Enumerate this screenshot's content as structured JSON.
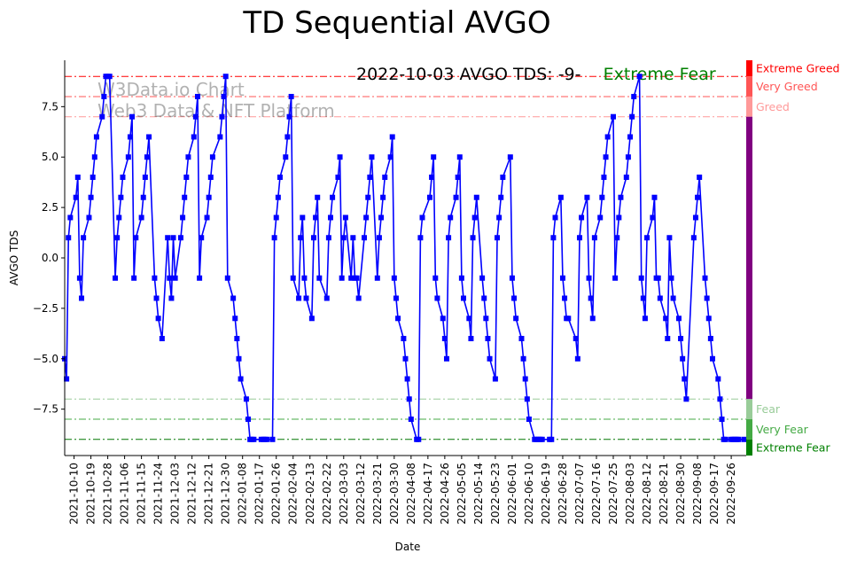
{
  "chart_data": {
    "type": "line",
    "title": "TD Sequential AVGO",
    "xlabel": "Date",
    "ylabel": "AVGO TDS",
    "ylim": [
      -9.8,
      9.8
    ],
    "xlim": [
      "2021-10-05",
      "2022-10-04"
    ],
    "y_ticks": [
      -7.5,
      -5.0,
      -2.5,
      0.0,
      2.5,
      5.0,
      7.5
    ],
    "y_tick_labels": [
      "−7.5",
      "−5.0",
      "−2.5",
      "0.0",
      "2.5",
      "5.0",
      "7.5"
    ],
    "x_tick_labels": [
      "2021-10-10",
      "2021-10-19",
      "2021-10-28",
      "2021-11-06",
      "2021-11-15",
      "2021-11-24",
      "2021-12-03",
      "2021-12-12",
      "2021-12-21",
      "2021-12-30",
      "2022-01-08",
      "2022-01-17",
      "2022-01-26",
      "2022-02-04",
      "2022-02-13",
      "2022-02-22",
      "2022-03-03",
      "2022-03-12",
      "2022-03-21",
      "2022-03-30",
      "2022-04-08",
      "2022-04-17",
      "2022-04-26",
      "2022-05-05",
      "2022-05-14",
      "2022-05-23",
      "2022-06-01",
      "2022-06-10",
      "2022-06-19",
      "2022-06-28",
      "2022-07-07",
      "2022-07-16",
      "2022-07-25",
      "2022-08-03",
      "2022-08-12",
      "2022-08-21",
      "2022-08-30",
      "2022-09-08",
      "2022-09-17",
      "2022-09-26"
    ],
    "grid": false,
    "series": [
      {
        "color": "#0000ff",
        "marker": "square",
        "points": [
          [
            "2021-10-05",
            -5
          ],
          [
            "2021-10-06",
            -6
          ],
          [
            "2021-10-07",
            1
          ],
          [
            "2021-10-08",
            2
          ],
          [
            "2021-10-11",
            3
          ],
          [
            "2021-10-12",
            4
          ],
          [
            "2021-10-13",
            -1
          ],
          [
            "2021-10-14",
            -2
          ],
          [
            "2021-10-15",
            1
          ],
          [
            "2021-10-18",
            2
          ],
          [
            "2021-10-19",
            3
          ],
          [
            "2021-10-20",
            4
          ],
          [
            "2021-10-21",
            5
          ],
          [
            "2021-10-22",
            6
          ],
          [
            "2021-10-25",
            7
          ],
          [
            "2021-10-26",
            8
          ],
          [
            "2021-10-27",
            9
          ],
          [
            "2021-10-28",
            9
          ],
          [
            "2021-10-29",
            9
          ],
          [
            "2021-11-01",
            -1
          ],
          [
            "2021-11-02",
            1
          ],
          [
            "2021-11-03",
            2
          ],
          [
            "2021-11-04",
            3
          ],
          [
            "2021-11-05",
            4
          ],
          [
            "2021-11-08",
            5
          ],
          [
            "2021-11-09",
            6
          ],
          [
            "2021-11-10",
            7
          ],
          [
            "2021-11-11",
            -1
          ],
          [
            "2021-11-12",
            1
          ],
          [
            "2021-11-15",
            2
          ],
          [
            "2021-11-16",
            3
          ],
          [
            "2021-11-17",
            4
          ],
          [
            "2021-11-18",
            5
          ],
          [
            "2021-11-19",
            6
          ],
          [
            "2021-11-22",
            -1
          ],
          [
            "2021-11-23",
            -2
          ],
          [
            "2021-11-24",
            -3
          ],
          [
            "2021-11-26",
            -4
          ],
          [
            "2021-11-29",
            1
          ],
          [
            "2021-11-30",
            -1
          ],
          [
            "2021-12-01",
            -2
          ],
          [
            "2021-12-02",
            1
          ],
          [
            "2021-12-03",
            -1
          ],
          [
            "2021-12-06",
            1
          ],
          [
            "2021-12-07",
            2
          ],
          [
            "2021-12-08",
            3
          ],
          [
            "2021-12-09",
            4
          ],
          [
            "2021-12-10",
            5
          ],
          [
            "2021-12-13",
            6
          ],
          [
            "2021-12-14",
            7
          ],
          [
            "2021-12-15",
            8
          ],
          [
            "2021-12-16",
            -1
          ],
          [
            "2021-12-17",
            1
          ],
          [
            "2021-12-20",
            2
          ],
          [
            "2021-12-21",
            3
          ],
          [
            "2021-12-22",
            4
          ],
          [
            "2021-12-23",
            5
          ],
          [
            "2021-12-27",
            6
          ],
          [
            "2021-12-28",
            7
          ],
          [
            "2021-12-29",
            8
          ],
          [
            "2021-12-30",
            9
          ],
          [
            "2021-12-31",
            -1
          ],
          [
            "2022-01-03",
            -2
          ],
          [
            "2022-01-04",
            -3
          ],
          [
            "2022-01-05",
            -4
          ],
          [
            "2022-01-06",
            -5
          ],
          [
            "2022-01-07",
            -6
          ],
          [
            "2022-01-10",
            -7
          ],
          [
            "2022-01-11",
            -8
          ],
          [
            "2022-01-12",
            -9
          ],
          [
            "2022-01-13",
            -9
          ],
          [
            "2022-01-14",
            -9
          ],
          [
            "2022-01-18",
            -9
          ],
          [
            "2022-01-19",
            -9
          ],
          [
            "2022-01-20",
            -9
          ],
          [
            "2022-01-21",
            -9
          ],
          [
            "2022-01-24",
            -9
          ],
          [
            "2022-01-25",
            1
          ],
          [
            "2022-01-26",
            2
          ],
          [
            "2022-01-27",
            3
          ],
          [
            "2022-01-28",
            4
          ],
          [
            "2022-01-31",
            5
          ],
          [
            "2022-02-01",
            6
          ],
          [
            "2022-02-02",
            7
          ],
          [
            "2022-02-03",
            8
          ],
          [
            "2022-02-04",
            -1
          ],
          [
            "2022-02-07",
            -2
          ],
          [
            "2022-02-08",
            1
          ],
          [
            "2022-02-09",
            2
          ],
          [
            "2022-02-10",
            -1
          ],
          [
            "2022-02-11",
            -2
          ],
          [
            "2022-02-14",
            -3
          ],
          [
            "2022-02-15",
            1
          ],
          [
            "2022-02-16",
            2
          ],
          [
            "2022-02-17",
            3
          ],
          [
            "2022-02-18",
            -1
          ],
          [
            "2022-02-22",
            -2
          ],
          [
            "2022-02-23",
            1
          ],
          [
            "2022-02-24",
            2
          ],
          [
            "2022-02-25",
            3
          ],
          [
            "2022-02-28",
            4
          ],
          [
            "2022-03-01",
            5
          ],
          [
            "2022-03-02",
            -1
          ],
          [
            "2022-03-03",
            1
          ],
          [
            "2022-03-04",
            2
          ],
          [
            "2022-03-07",
            -1
          ],
          [
            "2022-03-08",
            1
          ],
          [
            "2022-03-09",
            -1
          ],
          [
            "2022-03-10",
            -1
          ],
          [
            "2022-03-11",
            -2
          ],
          [
            "2022-03-14",
            1
          ],
          [
            "2022-03-15",
            2
          ],
          [
            "2022-03-16",
            3
          ],
          [
            "2022-03-17",
            4
          ],
          [
            "2022-03-18",
            5
          ],
          [
            "2022-03-21",
            -1
          ],
          [
            "2022-03-22",
            1
          ],
          [
            "2022-03-23",
            2
          ],
          [
            "2022-03-24",
            3
          ],
          [
            "2022-03-25",
            4
          ],
          [
            "2022-03-28",
            5
          ],
          [
            "2022-03-29",
            6
          ],
          [
            "2022-03-30",
            -1
          ],
          [
            "2022-03-31",
            -2
          ],
          [
            "2022-04-01",
            -3
          ],
          [
            "2022-04-04",
            -4
          ],
          [
            "2022-04-05",
            -5
          ],
          [
            "2022-04-06",
            -6
          ],
          [
            "2022-04-07",
            -7
          ],
          [
            "2022-04-08",
            -8
          ],
          [
            "2022-04-11",
            -9
          ],
          [
            "2022-04-12",
            -9
          ],
          [
            "2022-04-13",
            1
          ],
          [
            "2022-04-14",
            2
          ],
          [
            "2022-04-18",
            3
          ],
          [
            "2022-04-19",
            4
          ],
          [
            "2022-04-20",
            5
          ],
          [
            "2022-04-21",
            -1
          ],
          [
            "2022-04-22",
            -2
          ],
          [
            "2022-04-25",
            -3
          ],
          [
            "2022-04-26",
            -4
          ],
          [
            "2022-04-27",
            -5
          ],
          [
            "2022-04-28",
            1
          ],
          [
            "2022-04-29",
            2
          ],
          [
            "2022-05-02",
            3
          ],
          [
            "2022-05-03",
            4
          ],
          [
            "2022-05-04",
            5
          ],
          [
            "2022-05-05",
            -1
          ],
          [
            "2022-05-06",
            -2
          ],
          [
            "2022-05-09",
            -3
          ],
          [
            "2022-05-10",
            -4
          ],
          [
            "2022-05-11",
            1
          ],
          [
            "2022-05-12",
            2
          ],
          [
            "2022-05-13",
            3
          ],
          [
            "2022-05-16",
            -1
          ],
          [
            "2022-05-17",
            -2
          ],
          [
            "2022-05-18",
            -3
          ],
          [
            "2022-05-19",
            -4
          ],
          [
            "2022-05-20",
            -5
          ],
          [
            "2022-05-23",
            -6
          ],
          [
            "2022-05-24",
            1
          ],
          [
            "2022-05-25",
            2
          ],
          [
            "2022-05-26",
            3
          ],
          [
            "2022-05-27",
            4
          ],
          [
            "2022-05-31",
            5
          ],
          [
            "2022-06-01",
            -1
          ],
          [
            "2022-06-02",
            -2
          ],
          [
            "2022-06-03",
            -3
          ],
          [
            "2022-06-06",
            -4
          ],
          [
            "2022-06-07",
            -5
          ],
          [
            "2022-06-08",
            -6
          ],
          [
            "2022-06-09",
            -7
          ],
          [
            "2022-06-10",
            -8
          ],
          [
            "2022-06-13",
            -9
          ],
          [
            "2022-06-14",
            -9
          ],
          [
            "2022-06-15",
            -9
          ],
          [
            "2022-06-16",
            -9
          ],
          [
            "2022-06-17",
            -9
          ],
          [
            "2022-06-21",
            -9
          ],
          [
            "2022-06-22",
            -9
          ],
          [
            "2022-06-23",
            1
          ],
          [
            "2022-06-24",
            2
          ],
          [
            "2022-06-27",
            3
          ],
          [
            "2022-06-28",
            -1
          ],
          [
            "2022-06-29",
            -2
          ],
          [
            "2022-06-30",
            -3
          ],
          [
            "2022-07-01",
            -3
          ],
          [
            "2022-07-05",
            -4
          ],
          [
            "2022-07-06",
            -5
          ],
          [
            "2022-07-07",
            1
          ],
          [
            "2022-07-08",
            2
          ],
          [
            "2022-07-11",
            3
          ],
          [
            "2022-07-12",
            -1
          ],
          [
            "2022-07-13",
            -2
          ],
          [
            "2022-07-14",
            -3
          ],
          [
            "2022-07-15",
            1
          ],
          [
            "2022-07-18",
            2
          ],
          [
            "2022-07-19",
            3
          ],
          [
            "2022-07-20",
            4
          ],
          [
            "2022-07-21",
            5
          ],
          [
            "2022-07-22",
            6
          ],
          [
            "2022-07-25",
            7
          ],
          [
            "2022-07-26",
            -1
          ],
          [
            "2022-07-27",
            1
          ],
          [
            "2022-07-28",
            2
          ],
          [
            "2022-07-29",
            3
          ],
          [
            "2022-08-01",
            4
          ],
          [
            "2022-08-02",
            5
          ],
          [
            "2022-08-03",
            6
          ],
          [
            "2022-08-04",
            7
          ],
          [
            "2022-08-05",
            8
          ],
          [
            "2022-08-08",
            9
          ],
          [
            "2022-08-09",
            -1
          ],
          [
            "2022-08-10",
            -2
          ],
          [
            "2022-08-11",
            -3
          ],
          [
            "2022-08-12",
            1
          ],
          [
            "2022-08-15",
            2
          ],
          [
            "2022-08-16",
            3
          ],
          [
            "2022-08-17",
            -1
          ],
          [
            "2022-08-18",
            -1
          ],
          [
            "2022-08-19",
            -2
          ],
          [
            "2022-08-22",
            -3
          ],
          [
            "2022-08-23",
            -4
          ],
          [
            "2022-08-24",
            1
          ],
          [
            "2022-08-25",
            -1
          ],
          [
            "2022-08-26",
            -2
          ],
          [
            "2022-08-29",
            -3
          ],
          [
            "2022-08-30",
            -4
          ],
          [
            "2022-08-31",
            -5
          ],
          [
            "2022-09-01",
            -6
          ],
          [
            "2022-09-02",
            -7
          ],
          [
            "2022-09-06",
            1
          ],
          [
            "2022-09-07",
            2
          ],
          [
            "2022-09-08",
            3
          ],
          [
            "2022-09-09",
            4
          ],
          [
            "2022-09-12",
            -1
          ],
          [
            "2022-09-13",
            -2
          ],
          [
            "2022-09-14",
            -3
          ],
          [
            "2022-09-15",
            -4
          ],
          [
            "2022-09-16",
            -5
          ],
          [
            "2022-09-19",
            -6
          ],
          [
            "2022-09-20",
            -7
          ],
          [
            "2022-09-21",
            -8
          ],
          [
            "2022-09-22",
            -9
          ],
          [
            "2022-09-23",
            -9
          ],
          [
            "2022-09-26",
            -9
          ],
          [
            "2022-09-27",
            -9
          ],
          [
            "2022-09-28",
            -9
          ],
          [
            "2022-09-29",
            -9
          ],
          [
            "2022-09-30",
            -9
          ],
          [
            "2022-10-03",
            -9
          ]
        ]
      }
    ],
    "reference_lines": [
      {
        "y": 9,
        "color": "#ff0000",
        "style": "dashdot"
      },
      {
        "y": 8,
        "color": "#ff5555",
        "style": "dashdot"
      },
      {
        "y": 7,
        "color": "#ff9999",
        "style": "dashdot"
      },
      {
        "y": -7,
        "color": "#99cc99",
        "style": "dashdot"
      },
      {
        "y": -8,
        "color": "#44aa44",
        "style": "dashdot"
      },
      {
        "y": -9,
        "color": "#007700",
        "style": "dashdot"
      }
    ],
    "annotations": {
      "headline": "2022-10-03 AVGO TDS: -9-",
      "status": "Extreme Fear",
      "status_color": "#008000",
      "watermark_line1": "W3Data.io Chart",
      "watermark_line2": "Web3 Data & NFT Platform"
    },
    "sentiment_zones": [
      {
        "label": "Extreme Greed",
        "from": 9,
        "to": 9.8,
        "color": "#ff0000"
      },
      {
        "label": "Very Greed",
        "from": 8,
        "to": 9,
        "color": "#ff5555"
      },
      {
        "label": "Greed",
        "from": 7,
        "to": 8,
        "color": "#ff9999"
      },
      {
        "label": "",
        "from": -7,
        "to": 7,
        "color": "#800080"
      },
      {
        "label": "Fear",
        "from": -8,
        "to": -7,
        "color": "#99cc99"
      },
      {
        "label": "Very Fear",
        "from": -9,
        "to": -8,
        "color": "#44aa44"
      },
      {
        "label": "Extreme Fear",
        "from": -9.8,
        "to": -9,
        "color": "#008000"
      }
    ]
  }
}
